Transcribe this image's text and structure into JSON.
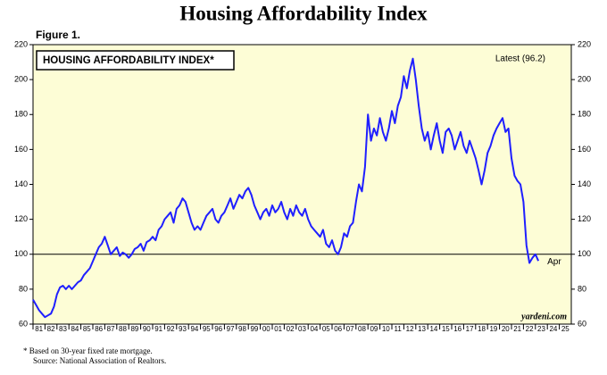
{
  "chart_data": {
    "type": "line",
    "title": "Housing Affordability Index",
    "figure_label": "Figure 1.",
    "legend_box": "HOUSING AFFORDABILITY INDEX*",
    "latest_label": "Latest (96.2)",
    "end_annotation": "Apr",
    "watermark": "yardeni.com",
    "footnotes": [
      "*  Based on 30-year fixed rate mortgage.",
      "Source: National Association of Realtors."
    ],
    "series": [
      {
        "name": "HOUSING AFFORDABILITY INDEX*",
        "color": "#1f1fff",
        "x": [
          1981,
          1981.25,
          1981.5,
          1981.75,
          1982,
          1982.25,
          1982.5,
          1982.75,
          1983,
          1983.25,
          1983.5,
          1983.75,
          1984,
          1984.25,
          1984.5,
          1984.75,
          1985,
          1985.25,
          1985.5,
          1985.75,
          1986,
          1986.25,
          1986.5,
          1986.75,
          1987,
          1987.25,
          1987.5,
          1987.75,
          1988,
          1988.25,
          1988.5,
          1988.75,
          1989,
          1989.25,
          1989.5,
          1989.75,
          1990,
          1990.25,
          1990.5,
          1990.75,
          1991,
          1991.25,
          1991.5,
          1991.75,
          1992,
          1992.25,
          1992.5,
          1992.75,
          1993,
          1993.25,
          1993.5,
          1993.75,
          1994,
          1994.25,
          1994.5,
          1994.75,
          1995,
          1995.25,
          1995.5,
          1995.75,
          1996,
          1996.25,
          1996.5,
          1996.75,
          1997,
          1997.25,
          1997.5,
          1997.75,
          1998,
          1998.25,
          1998.5,
          1998.75,
          1999,
          1999.25,
          1999.5,
          1999.75,
          2000,
          2000.25,
          2000.5,
          2000.75,
          2001,
          2001.25,
          2001.5,
          2001.75,
          2002,
          2002.25,
          2002.5,
          2002.75,
          2003,
          2003.25,
          2003.5,
          2003.75,
          2004,
          2004.25,
          2004.5,
          2004.75,
          2005,
          2005.25,
          2005.5,
          2005.75,
          2006,
          2006.25,
          2006.5,
          2006.75,
          2007,
          2007.25,
          2007.5,
          2007.75,
          2008,
          2008.25,
          2008.5,
          2008.75,
          2009,
          2009.25,
          2009.5,
          2009.75,
          2010,
          2010.25,
          2010.5,
          2010.75,
          2011,
          2011.25,
          2011.5,
          2011.75,
          2012,
          2012.25,
          2012.5,
          2012.75,
          2013,
          2013.25,
          2013.5,
          2013.75,
          2014,
          2014.25,
          2014.5,
          2014.75,
          2015,
          2015.25,
          2015.5,
          2015.75,
          2016,
          2016.25,
          2016.5,
          2016.75,
          2017,
          2017.25,
          2017.5,
          2017.75,
          2018,
          2018.25,
          2018.5,
          2018.75,
          2019,
          2019.25,
          2019.5,
          2019.75,
          2020,
          2020.25,
          2020.5,
          2020.75,
          2021,
          2021.25,
          2021.5,
          2021.75,
          2022,
          2022.25,
          2022.5,
          2022.75,
          2023,
          2023.25
        ],
        "values": [
          74,
          71,
          68,
          66,
          64,
          65,
          66,
          70,
          77,
          81,
          82,
          80,
          82,
          80,
          82,
          84,
          85,
          88,
          90,
          92,
          96,
          100,
          104,
          106,
          110,
          105,
          100,
          102,
          104,
          99,
          101,
          100,
          98,
          100,
          103,
          104,
          106,
          102,
          107,
          108,
          110,
          108,
          114,
          116,
          120,
          122,
          124,
          118,
          126,
          128,
          132,
          130,
          124,
          118,
          114,
          116,
          114,
          118,
          122,
          124,
          126,
          120,
          118,
          122,
          124,
          128,
          132,
          126,
          130,
          134,
          132,
          136,
          138,
          134,
          128,
          124,
          120,
          124,
          126,
          122,
          128,
          124,
          126,
          130,
          124,
          120,
          126,
          122,
          128,
          124,
          122,
          126,
          120,
          116,
          114,
          112,
          110,
          114,
          106,
          104,
          108,
          102,
          100,
          104,
          112,
          110,
          116,
          118,
          130,
          140,
          136,
          150,
          180,
          165,
          172,
          168,
          178,
          170,
          165,
          172,
          182,
          175,
          185,
          190,
          202,
          195,
          205,
          212,
          200,
          185,
          172,
          165,
          170,
          160,
          168,
          175,
          165,
          158,
          170,
          172,
          168,
          160,
          165,
          170,
          162,
          158,
          165,
          160,
          155,
          148,
          140,
          148,
          158,
          162,
          168,
          172,
          175,
          178,
          170,
          172,
          155,
          145,
          142,
          140,
          130,
          105,
          95,
          98,
          100,
          96.2
        ]
      }
    ],
    "xlim": [
      1981,
      2026
    ],
    "xticks": [
      {
        "value": 1981,
        "label": "81"
      },
      {
        "value": 1982,
        "label": "82"
      },
      {
        "value": 1983,
        "label": "83"
      },
      {
        "value": 1984,
        "label": "84"
      },
      {
        "value": 1985,
        "label": "85"
      },
      {
        "value": 1986,
        "label": "86"
      },
      {
        "value": 1987,
        "label": "87"
      },
      {
        "value": 1988,
        "label": "88"
      },
      {
        "value": 1989,
        "label": "89"
      },
      {
        "value": 1990,
        "label": "90"
      },
      {
        "value": 1991,
        "label": "91"
      },
      {
        "value": 1992,
        "label": "92"
      },
      {
        "value": 1993,
        "label": "93"
      },
      {
        "value": 1994,
        "label": "94"
      },
      {
        "value": 1995,
        "label": "95"
      },
      {
        "value": 1996,
        "label": "96"
      },
      {
        "value": 1997,
        "label": "97"
      },
      {
        "value": 1998,
        "label": "98"
      },
      {
        "value": 1999,
        "label": "99"
      },
      {
        "value": 2000,
        "label": "00"
      },
      {
        "value": 2001,
        "label": "01"
      },
      {
        "value": 2002,
        "label": "02"
      },
      {
        "value": 2003,
        "label": "03"
      },
      {
        "value": 2004,
        "label": "04"
      },
      {
        "value": 2005,
        "label": "05"
      },
      {
        "value": 2006,
        "label": "06"
      },
      {
        "value": 2007,
        "label": "07"
      },
      {
        "value": 2008,
        "label": "08"
      },
      {
        "value": 2009,
        "label": "09"
      },
      {
        "value": 2010,
        "label": "10"
      },
      {
        "value": 2011,
        "label": "11"
      },
      {
        "value": 2012,
        "label": "12"
      },
      {
        "value": 2013,
        "label": "13"
      },
      {
        "value": 2014,
        "label": "14"
      },
      {
        "value": 2015,
        "label": "15"
      },
      {
        "value": 2016,
        "label": "16"
      },
      {
        "value": 2017,
        "label": "17"
      },
      {
        "value": 2018,
        "label": "18"
      },
      {
        "value": 2019,
        "label": "19"
      },
      {
        "value": 2020,
        "label": "20"
      },
      {
        "value": 2021,
        "label": "21"
      },
      {
        "value": 2022,
        "label": "22"
      },
      {
        "value": 2023,
        "label": "23"
      },
      {
        "value": 2024,
        "label": "24"
      },
      {
        "value": 2025,
        "label": "25"
      }
    ],
    "ylim": [
      60,
      220
    ],
    "yticks": [
      60,
      80,
      100,
      120,
      140,
      160,
      180,
      200,
      220
    ],
    "reference_line": 100,
    "background": "#fdfdd6"
  }
}
